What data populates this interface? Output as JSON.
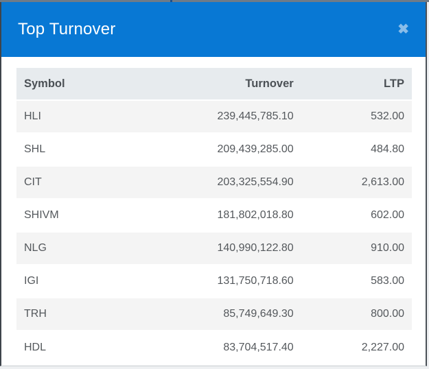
{
  "modal": {
    "title": "Top Turnover",
    "close_glyph": "✖"
  },
  "colors": {
    "header_bg": "#0878d4",
    "close_icon": "#8abde9",
    "table_head_bg": "#e7ebee",
    "stripe_bg": "#f4f4f4",
    "top_strip": "#6e7b88"
  },
  "table": {
    "columns": [
      "Symbol",
      "Turnover",
      "LTP"
    ],
    "rows": [
      {
        "symbol": "HLI",
        "turnover": "239,445,785.10",
        "ltp": "532.00"
      },
      {
        "symbol": "SHL",
        "turnover": "209,439,285.00",
        "ltp": "484.80"
      },
      {
        "symbol": "CIT",
        "turnover": "203,325,554.90",
        "ltp": "2,613.00"
      },
      {
        "symbol": "SHIVM",
        "turnover": "181,802,018.80",
        "ltp": "602.00"
      },
      {
        "symbol": "NLG",
        "turnover": "140,990,122.80",
        "ltp": "910.00"
      },
      {
        "symbol": "IGI",
        "turnover": "131,750,718.60",
        "ltp": "583.00"
      },
      {
        "symbol": "TRH",
        "turnover": "85,749,649.30",
        "ltp": "800.00"
      },
      {
        "symbol": "HDL",
        "turnover": "83,704,517.40",
        "ltp": "2,227.00"
      }
    ]
  }
}
